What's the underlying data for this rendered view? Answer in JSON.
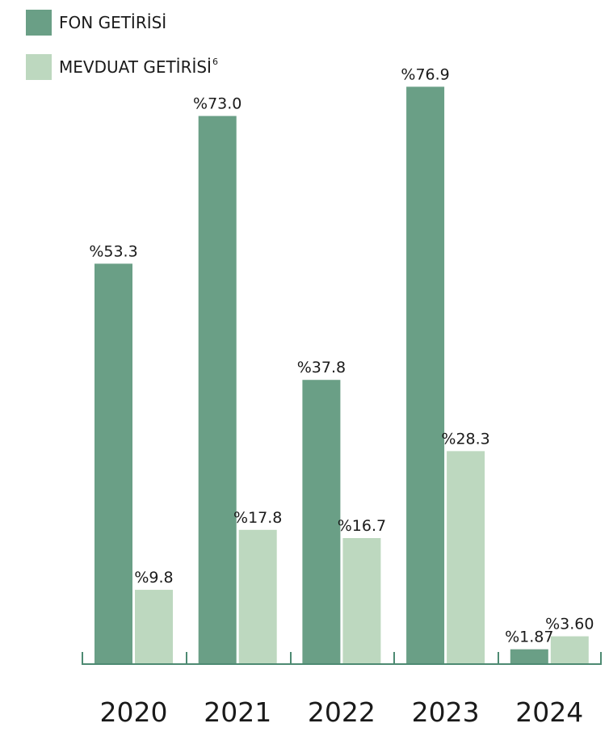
{
  "legend": {
    "fund": {
      "label": "FON GETİRİSİ",
      "color": "#6a9f86"
    },
    "deposit": {
      "label": "MEVDUAT GETİRİSİ",
      "sup": "6",
      "color": "#bdd8bf"
    }
  },
  "chart_data": {
    "type": "bar",
    "categories": [
      "2020",
      "2021",
      "2022",
      "2023",
      "2024"
    ],
    "series": [
      {
        "name": "FON GETİRİSİ",
        "values": [
          53.3,
          73.0,
          37.8,
          76.9,
          1.87
        ],
        "labels": [
          "%53.3",
          "%73.0",
          "%37.8",
          "%76.9",
          "%1.87"
        ],
        "color": "#6a9f86"
      },
      {
        "name": "MEVDUAT GETİRİSİ",
        "values": [
          9.8,
          17.8,
          16.7,
          28.3,
          3.6
        ],
        "labels": [
          "%9.8",
          "%17.8",
          "%16.7",
          "%28.3",
          "%3.60"
        ],
        "color": "#bdd8bf"
      }
    ],
    "axis_color": "#4d8a72",
    "grid": false,
    "legend_position": "top-left"
  }
}
